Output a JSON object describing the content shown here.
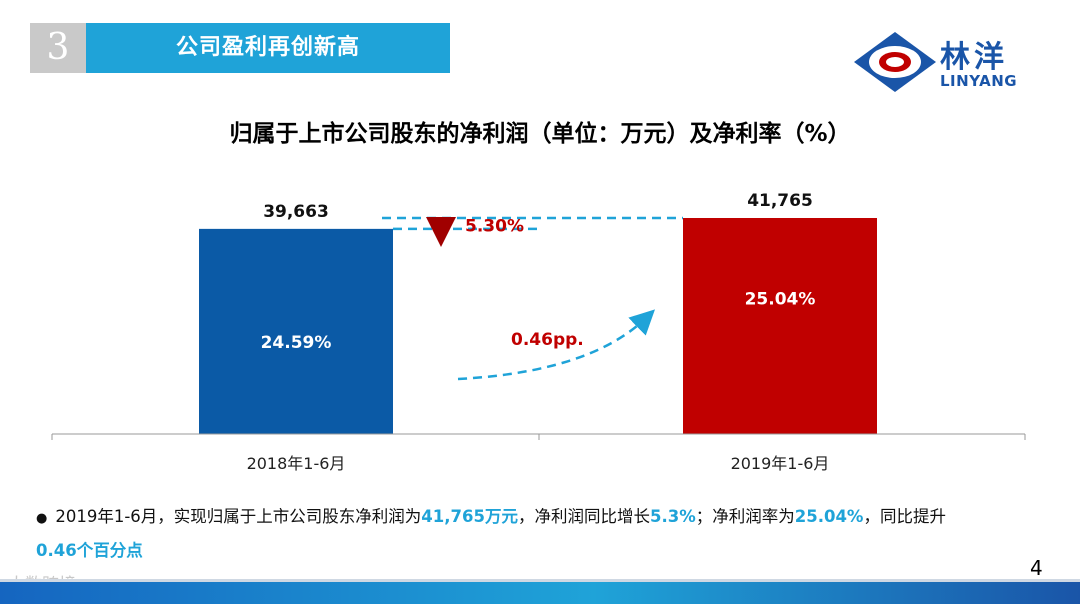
{
  "header": {
    "number": "3",
    "title": "公司盈利再创新高"
  },
  "logo": {
    "cn": "林洋",
    "en": "LINYANG"
  },
  "chart_data": {
    "type": "bar",
    "title": "归属于上市公司股东的净利润（单位：万元）及净利率（%）",
    "categories": [
      "2018年1-6月",
      "2019年1-6月"
    ],
    "series": [
      {
        "values": [
          39663,
          41765
        ],
        "value_labels": [
          "39,663",
          "41,765"
        ],
        "colors": [
          "#0b5aa6",
          "#c00000"
        ]
      }
    ],
    "net_margin": [
      24.59,
      25.04
    ],
    "net_margin_labels": [
      "24.59%",
      "25.04%"
    ],
    "annotations": {
      "growth": "5.30%",
      "margin_change": "0.46pp."
    },
    "ylim": [
      0,
      41765
    ],
    "grid": false,
    "legend": "none"
  },
  "note": {
    "p1": "2019年1-6月，实现归属于上市公司股东净利润为",
    "h1": "41,765万元",
    "p2": "，净利润同比增长",
    "h2": "5.3%",
    "p3": "；净利润率为",
    "h3": "25.04%",
    "p4": "，同比提升",
    "h4": "0.46个百分点"
  },
  "page_number": "4",
  "watermark": "大数跨境"
}
